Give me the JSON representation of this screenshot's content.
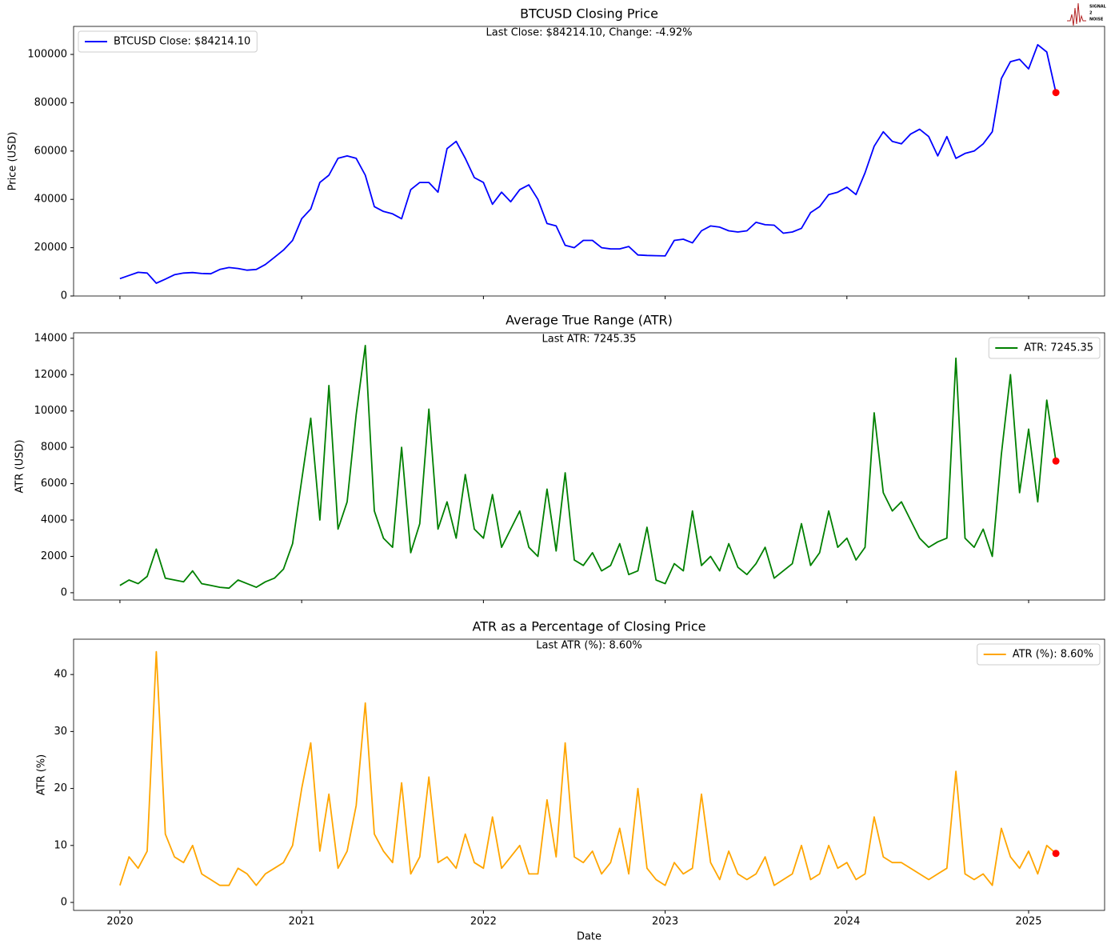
{
  "logo": [
    "SIGNAL",
    "2",
    "NOISE"
  ],
  "chart_data": [
    {
      "type": "line",
      "title": "BTCUSD Closing Price",
      "annotation": "Last Close: $84214.10, Change: -4.92%",
      "ylabel": "Price (USD)",
      "legend": "upper left",
      "marker_color": "red",
      "xlim": [
        2019.745,
        2025.418
      ],
      "xticks": [
        2020,
        2021,
        2022,
        2023,
        2024,
        2025
      ],
      "ylim": [
        0,
        111600
      ],
      "yticks": [
        0,
        20000,
        40000,
        60000,
        80000,
        100000
      ],
      "x": [
        2020.0,
        2020.05,
        2020.1,
        2020.15,
        2020.2,
        2020.25,
        2020.3,
        2020.35,
        2020.4,
        2020.45,
        2020.5,
        2020.55,
        2020.6,
        2020.65,
        2020.7,
        2020.75,
        2020.8,
        2020.85,
        2020.9,
        2020.95,
        2021.0,
        2021.05,
        2021.1,
        2021.15,
        2021.2,
        2021.25,
        2021.3,
        2021.35,
        2021.4,
        2021.45,
        2021.5,
        2021.55,
        2021.6,
        2021.65,
        2021.7,
        2021.75,
        2021.8,
        2021.85,
        2021.9,
        2021.95,
        2022.0,
        2022.05,
        2022.1,
        2022.15,
        2022.2,
        2022.25,
        2022.3,
        2022.35,
        2022.4,
        2022.45,
        2022.5,
        2022.55,
        2022.6,
        2022.65,
        2022.7,
        2022.75,
        2022.8,
        2022.85,
        2022.9,
        2022.95,
        2023.0,
        2023.05,
        2023.1,
        2023.15,
        2023.2,
        2023.25,
        2023.3,
        2023.35,
        2023.4,
        2023.45,
        2023.5,
        2023.55,
        2023.6,
        2023.65,
        2023.7,
        2023.75,
        2023.8,
        2023.85,
        2023.9,
        2023.95,
        2024.0,
        2024.05,
        2024.1,
        2024.15,
        2024.2,
        2024.25,
        2024.3,
        2024.35,
        2024.4,
        2024.45,
        2024.5,
        2024.55,
        2024.6,
        2024.65,
        2024.7,
        2024.75,
        2024.8,
        2024.85,
        2024.9,
        2024.95,
        2025.0,
        2025.05,
        2025.1,
        2025.15
      ],
      "series": [
        {
          "name": "BTCUSD Close: $84214.10",
          "color": "#0000ff",
          "values": [
            7200,
            8500,
            9800,
            9500,
            5300,
            7000,
            8800,
            9500,
            9700,
            9300,
            9200,
            11000,
            11800,
            11400,
            10700,
            11000,
            13000,
            16000,
            19000,
            23000,
            32000,
            36000,
            47000,
            50000,
            57000,
            58000,
            57000,
            50000,
            37000,
            35000,
            34000,
            32000,
            44000,
            47000,
            47000,
            43000,
            61000,
            64000,
            57000,
            49000,
            47000,
            38000,
            43000,
            39000,
            44000,
            46000,
            40000,
            30000,
            29000,
            21000,
            20000,
            23000,
            23000,
            20000,
            19500,
            19500,
            20500,
            17000,
            16800,
            16700,
            16600,
            23000,
            23500,
            22000,
            27000,
            29000,
            28500,
            27000,
            26500,
            27000,
            30500,
            29500,
            29300,
            26000,
            26500,
            28000,
            34500,
            37000,
            42000,
            43000,
            45000,
            42000,
            51000,
            62000,
            68000,
            64000,
            63000,
            67000,
            69000,
            66000,
            58000,
            66000,
            57000,
            59000,
            60000,
            63000,
            68000,
            90000,
            97000,
            98000,
            94000,
            104000,
            101000,
            84214.1
          ]
        }
      ]
    },
    {
      "type": "line",
      "title": "Average True Range (ATR)",
      "annotation": "Last ATR: 7245.35",
      "ylabel": "ATR (USD)",
      "legend": "upper right",
      "marker_color": "red",
      "xlim": [
        2019.745,
        2025.418
      ],
      "xticks": [
        2020,
        2021,
        2022,
        2023,
        2024,
        2025
      ],
      "ylim": [
        -400,
        14300
      ],
      "yticks": [
        0,
        2000,
        4000,
        6000,
        8000,
        10000,
        12000,
        14000
      ],
      "x": [
        2020.0,
        2020.05,
        2020.1,
        2020.15,
        2020.2,
        2020.25,
        2020.3,
        2020.35,
        2020.4,
        2020.45,
        2020.5,
        2020.55,
        2020.6,
        2020.65,
        2020.7,
        2020.75,
        2020.8,
        2020.85,
        2020.9,
        2020.95,
        2021.0,
        2021.05,
        2021.1,
        2021.15,
        2021.2,
        2021.25,
        2021.3,
        2021.35,
        2021.4,
        2021.45,
        2021.5,
        2021.55,
        2021.6,
        2021.65,
        2021.7,
        2021.75,
        2021.8,
        2021.85,
        2021.9,
        2021.95,
        2022.0,
        2022.05,
        2022.1,
        2022.15,
        2022.2,
        2022.25,
        2022.3,
        2022.35,
        2022.4,
        2022.45,
        2022.5,
        2022.55,
        2022.6,
        2022.65,
        2022.7,
        2022.75,
        2022.8,
        2022.85,
        2022.9,
        2022.95,
        2023.0,
        2023.05,
        2023.1,
        2023.15,
        2023.2,
        2023.25,
        2023.3,
        2023.35,
        2023.4,
        2023.45,
        2023.5,
        2023.55,
        2023.6,
        2023.65,
        2023.7,
        2023.75,
        2023.8,
        2023.85,
        2023.9,
        2023.95,
        2024.0,
        2024.05,
        2024.1,
        2024.15,
        2024.2,
        2024.25,
        2024.3,
        2024.35,
        2024.4,
        2024.45,
        2024.5,
        2024.55,
        2024.6,
        2024.65,
        2024.7,
        2024.75,
        2024.8,
        2024.85,
        2024.9,
        2024.95,
        2025.0,
        2025.05,
        2025.1,
        2025.15
      ],
      "series": [
        {
          "name": "ATR: 7245.35",
          "color": "#008000",
          "values": [
            400,
            700,
            500,
            900,
            2400,
            800,
            700,
            600,
            1200,
            500,
            400,
            300,
            250,
            700,
            500,
            300,
            600,
            800,
            1300,
            2700,
            6200,
            9600,
            4000,
            11400,
            3500,
            5000,
            9800,
            13600,
            4500,
            3000,
            2500,
            8000,
            2200,
            3800,
            10100,
            3500,
            5000,
            3000,
            6500,
            3500,
            3000,
            5400,
            2500,
            3500,
            4500,
            2500,
            2000,
            5700,
            2300,
            6600,
            1800,
            1500,
            2200,
            1200,
            1500,
            2700,
            1000,
            1200,
            3600,
            700,
            500,
            1600,
            1200,
            4500,
            1500,
            2000,
            1200,
            2700,
            1400,
            1000,
            1600,
            2500,
            800,
            1200,
            1600,
            3800,
            1500,
            2200,
            4500,
            2500,
            3000,
            1800,
            2500,
            9900,
            5500,
            4500,
            5000,
            4000,
            3000,
            2500,
            2800,
            3000,
            12900,
            3000,
            2500,
            3500,
            2000,
            7600,
            12000,
            5500,
            9000,
            5000,
            10600,
            7245.35
          ]
        }
      ]
    },
    {
      "type": "line",
      "title": "ATR as a Percentage of Closing Price",
      "annotation": "Last ATR (%): 8.60%",
      "ylabel": "ATR (%)",
      "xlabel": "Date",
      "legend": "upper right",
      "marker_color": "red",
      "xlim": [
        2019.745,
        2025.418
      ],
      "xticks": [
        2020,
        2021,
        2022,
        2023,
        2024,
        2025
      ],
      "ylim": [
        -1.4,
        46.2
      ],
      "yticks": [
        0,
        10,
        20,
        30,
        40
      ],
      "x": [
        2020.0,
        2020.05,
        2020.1,
        2020.15,
        2020.2,
        2020.25,
        2020.3,
        2020.35,
        2020.4,
        2020.45,
        2020.5,
        2020.55,
        2020.6,
        2020.65,
        2020.7,
        2020.75,
        2020.8,
        2020.85,
        2020.9,
        2020.95,
        2021.0,
        2021.05,
        2021.1,
        2021.15,
        2021.2,
        2021.25,
        2021.3,
        2021.35,
        2021.4,
        2021.45,
        2021.5,
        2021.55,
        2021.6,
        2021.65,
        2021.7,
        2021.75,
        2021.8,
        2021.85,
        2021.9,
        2021.95,
        2022.0,
        2022.05,
        2022.1,
        2022.15,
        2022.2,
        2022.25,
        2022.3,
        2022.35,
        2022.4,
        2022.45,
        2022.5,
        2022.55,
        2022.6,
        2022.65,
        2022.7,
        2022.75,
        2022.8,
        2022.85,
        2022.9,
        2022.95,
        2023.0,
        2023.05,
        2023.1,
        2023.15,
        2023.2,
        2023.25,
        2023.3,
        2023.35,
        2023.4,
        2023.45,
        2023.5,
        2023.55,
        2023.6,
        2023.65,
        2023.7,
        2023.75,
        2023.8,
        2023.85,
        2023.9,
        2023.95,
        2024.0,
        2024.05,
        2024.1,
        2024.15,
        2024.2,
        2024.25,
        2024.3,
        2024.35,
        2024.4,
        2024.45,
        2024.5,
        2024.55,
        2024.6,
        2024.65,
        2024.7,
        2024.75,
        2024.8,
        2024.85,
        2024.9,
        2024.95,
        2025.0,
        2025.05,
        2025.1,
        2025.15
      ],
      "series": [
        {
          "name": "ATR (%): 8.60%",
          "color": "#ffa500",
          "values": [
            3,
            8,
            6,
            9,
            44,
            12,
            8,
            7,
            10,
            5,
            4,
            3,
            3,
            6,
            5,
            3,
            5,
            6,
            7,
            10,
            20,
            28,
            9,
            19,
            6,
            9,
            17,
            35,
            12,
            9,
            7,
            21,
            5,
            8,
            22,
            7,
            8,
            6,
            12,
            7,
            6,
            15,
            6,
            8,
            10,
            5,
            5,
            18,
            8,
            28,
            8,
            7,
            9,
            5,
            7,
            13,
            5,
            20,
            6,
            4,
            3,
            7,
            5,
            6,
            19,
            7,
            4,
            9,
            5,
            4,
            5,
            8,
            3,
            4,
            5,
            10,
            4,
            5,
            10,
            6,
            7,
            4,
            5,
            15,
            8,
            7,
            7,
            6,
            5,
            4,
            5,
            6,
            23,
            5,
            4,
            5,
            3,
            13,
            8,
            6,
            9,
            5,
            10,
            8.6
          ]
        }
      ]
    }
  ]
}
